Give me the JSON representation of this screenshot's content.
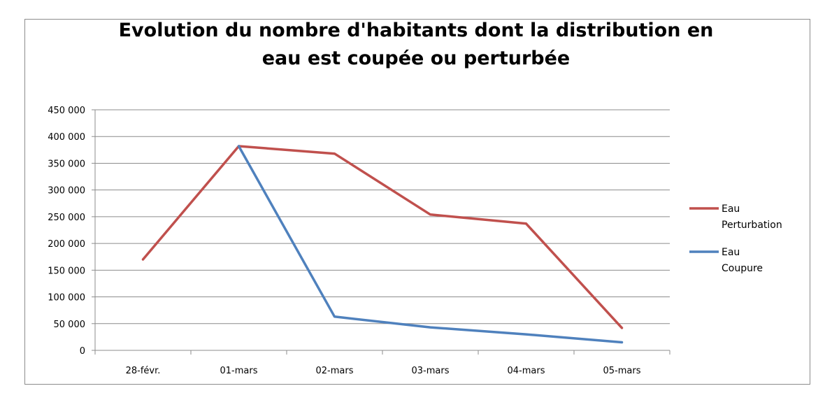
{
  "chart_data": {
    "type": "line",
    "title": "Evolution du nombre d'habitants dont la distribution en\neau est coupée ou perturbée",
    "categories": [
      "28-févr.",
      "01-mars",
      "02-mars",
      "03-mars",
      "04-mars",
      "05-mars"
    ],
    "ylim": [
      0,
      450000
    ],
    "yticks": [
      0,
      50000,
      100000,
      150000,
      200000,
      250000,
      300000,
      350000,
      400000,
      450000
    ],
    "ytick_labels": [
      "0",
      "50 000",
      "100 000",
      "150 000",
      "200 000",
      "250 000",
      "300 000",
      "350 000",
      "400 000",
      "450 000"
    ],
    "grid": true,
    "legend": "right",
    "series": [
      {
        "name": "Eau Perturbation",
        "legend_lines": [
          "Eau",
          "Perturbation"
        ],
        "color": "#c0504d",
        "values": [
          170000,
          382000,
          368000,
          254000,
          237000,
          42000
        ]
      },
      {
        "name": "Eau Coupure",
        "legend_lines": [
          "Eau",
          "Coupure"
        ],
        "color": "#4f81bd",
        "values": [
          null,
          382000,
          63000,
          43000,
          30000,
          15000
        ]
      }
    ]
  }
}
